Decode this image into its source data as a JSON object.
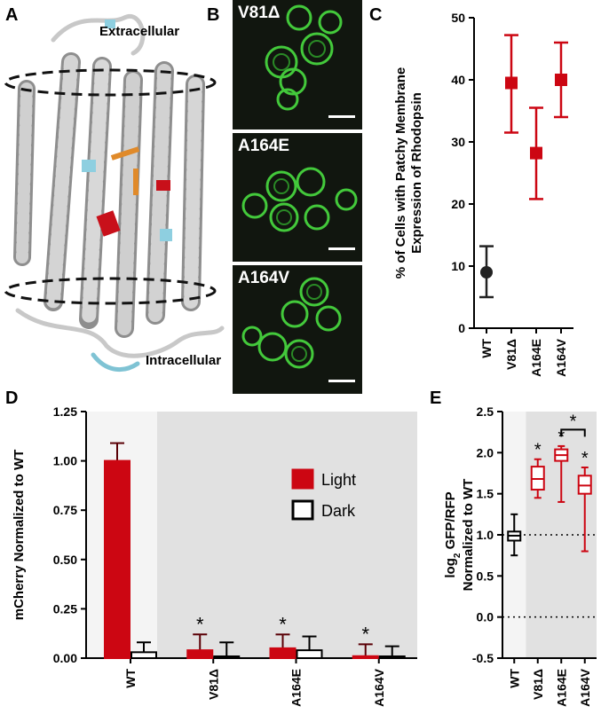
{
  "panels": {
    "A": {
      "letter": "A",
      "extracellular": "Extracellular",
      "intracellular": "Intracellular"
    },
    "B": {
      "letter": "B",
      "images": [
        {
          "label": "V81Δ"
        },
        {
          "label": "A164E"
        },
        {
          "label": "A164V"
        }
      ]
    },
    "C": {
      "letter": "C"
    },
    "D": {
      "letter": "D"
    },
    "E": {
      "letter": "E"
    }
  },
  "colors": {
    "mutant": "#cc0612",
    "wildtype": "#222222",
    "shade": "#e1e1e1",
    "cell_green": "#3fd13a"
  },
  "chart_data": [
    {
      "panel": "C",
      "type": "scatter",
      "ylabel_line1": "% of Cells with Patchy Membrane",
      "ylabel_line2": "Expression of Rhodopsin",
      "ylim": [
        0,
        50
      ],
      "yticks": [
        "0",
        "10",
        "20",
        "30",
        "40",
        "50"
      ],
      "categories": [
        "WT",
        "V81Δ",
        "A164E",
        "A164V"
      ],
      "values": [
        9,
        39.5,
        28.2,
        40
      ],
      "err_low": [
        5,
        31.5,
        20.8,
        34
      ],
      "err_high": [
        13.2,
        47.2,
        35.5,
        46
      ],
      "grid": false
    },
    {
      "panel": "D",
      "type": "bar",
      "ylabel": "mCherry Normalized to WT",
      "ylim": [
        0,
        1.25
      ],
      "yticks": [
        "0.00",
        "0.25",
        "0.50",
        "0.75",
        "1.00",
        "1.25"
      ],
      "categories": [
        "WT",
        "V81Δ",
        "A164E",
        "A164V"
      ],
      "series": [
        {
          "name": "Light",
          "values": [
            1.0,
            0.04,
            0.05,
            0.01
          ],
          "err": [
            0.09,
            0.08,
            0.07,
            0.06
          ]
        },
        {
          "name": "Dark",
          "values": [
            0.03,
            0.0,
            0.04,
            0.0
          ],
          "err": [
            0.05,
            0.08,
            0.07,
            0.06
          ]
        }
      ],
      "significance": [
        "",
        "*",
        "*",
        "*"
      ],
      "legend_position": "right"
    },
    {
      "panel": "E",
      "type": "box",
      "ylabel_line1": "log",
      "ylabel_sub": "2",
      "ylabel_line1_rest": " GFP/RFP",
      "ylabel_line2": "Normalized to WT",
      "ylim": [
        -0.5,
        2.5
      ],
      "yticks": [
        "-0.5",
        "0.0",
        "0.5",
        "1.0",
        "1.5",
        "2.0",
        "2.5"
      ],
      "categories": [
        "WT",
        "V81Δ",
        "A164E",
        "A164V"
      ],
      "boxes": [
        {
          "min": 0.75,
          "q1": 0.93,
          "median": 0.99,
          "q3": 1.04,
          "max": 1.25
        },
        {
          "min": 1.45,
          "q1": 1.55,
          "median": 1.68,
          "q3": 1.83,
          "max": 1.92
        },
        {
          "min": 1.4,
          "q1": 1.9,
          "median": 1.97,
          "q3": 2.04,
          "max": 2.08
        },
        {
          "min": 0.8,
          "q1": 1.5,
          "median": 1.6,
          "q3": 1.72,
          "max": 1.82
        }
      ],
      "significance": [
        "",
        "*",
        "*",
        "*"
      ],
      "bracket_label": "*",
      "reference_lines": [
        1.0,
        0.0
      ]
    }
  ]
}
